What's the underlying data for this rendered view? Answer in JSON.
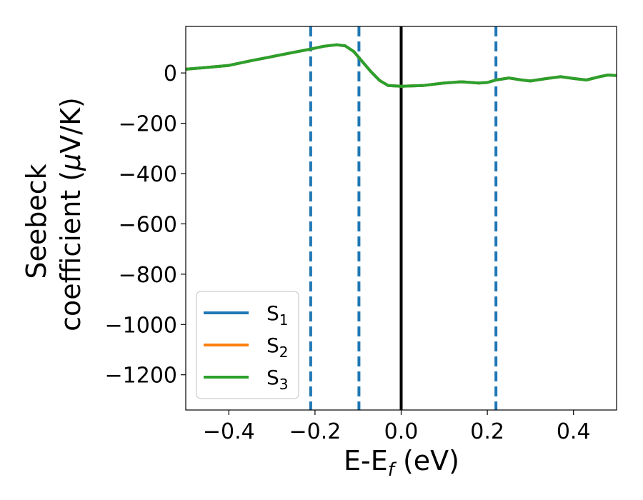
{
  "chart_data": {
    "type": "line",
    "xlabel": "E-E",
    "xlabel_sub": "f",
    "xlabel_unit": " (eV)",
    "ylabel_line1": "Seebeck",
    "ylabel_line2_pre": "coefficient  (",
    "ylabel_mu": "μ",
    "ylabel_line2_post": "V/K)",
    "xlim": [
      -0.5,
      0.5
    ],
    "ylim": [
      -1340,
      185
    ],
    "xticks": [
      -0.4,
      -0.2,
      0.0,
      0.2,
      0.4
    ],
    "xtick_labels": [
      "−0.4",
      "−0.2",
      "0.0",
      "0.2",
      "0.4"
    ],
    "yticks": [
      0,
      -200,
      -400,
      -600,
      -800,
      -1000,
      -1200
    ],
    "ytick_labels": [
      "0",
      "−200",
      "−400",
      "−600",
      "−800",
      "−1000",
      "−1200"
    ],
    "grid": false,
    "legend_position": "lower-left",
    "vertical_lines": [
      {
        "x": -0.21,
        "style": "dashed",
        "color": "#1f77b4"
      },
      {
        "x": -0.098,
        "style": "dashed",
        "color": "#1f77b4"
      },
      {
        "x": 0.0,
        "style": "solid",
        "color": "#000000"
      },
      {
        "x": 0.22,
        "style": "dashed",
        "color": "#1f77b4"
      }
    ],
    "x": [
      -0.5,
      -0.45,
      -0.4,
      -0.35,
      -0.3,
      -0.25,
      -0.21,
      -0.18,
      -0.15,
      -0.13,
      -0.11,
      -0.09,
      -0.07,
      -0.05,
      -0.03,
      0.0,
      0.05,
      0.1,
      0.14,
      0.18,
      0.2,
      0.22,
      0.25,
      0.28,
      0.3,
      0.33,
      0.37,
      0.4,
      0.43,
      0.46,
      0.48,
      0.5
    ],
    "series": [
      {
        "name": "S",
        "sub": "1",
        "color": "#1f77b4",
        "values": [
          15,
          22,
          30,
          48,
          65,
          82,
          95,
          106,
          112,
          108,
          85,
          45,
          5,
          -30,
          -50,
          -53,
          -50,
          -40,
          -35,
          -40,
          -38,
          -28,
          -20,
          -28,
          -32,
          -24,
          -15,
          -22,
          -28,
          -15,
          -8,
          -10
        ]
      },
      {
        "name": "S",
        "sub": "2",
        "color": "#ff7f0e",
        "values": [
          15,
          22,
          30,
          48,
          65,
          82,
          95,
          106,
          112,
          108,
          85,
          45,
          5,
          -30,
          -50,
          -53,
          -50,
          -40,
          -35,
          -40,
          -38,
          -28,
          -20,
          -28,
          -32,
          -24,
          -15,
          -22,
          -28,
          -15,
          -8,
          -10
        ]
      },
      {
        "name": "S",
        "sub": "3",
        "color": "#2ca02c",
        "values": [
          15,
          22,
          30,
          48,
          65,
          82,
          95,
          106,
          112,
          108,
          85,
          45,
          5,
          -30,
          -50,
          -53,
          -50,
          -40,
          -35,
          -40,
          -38,
          -28,
          -20,
          -28,
          -32,
          -24,
          -15,
          -22,
          -28,
          -15,
          -8,
          -10
        ]
      }
    ]
  }
}
